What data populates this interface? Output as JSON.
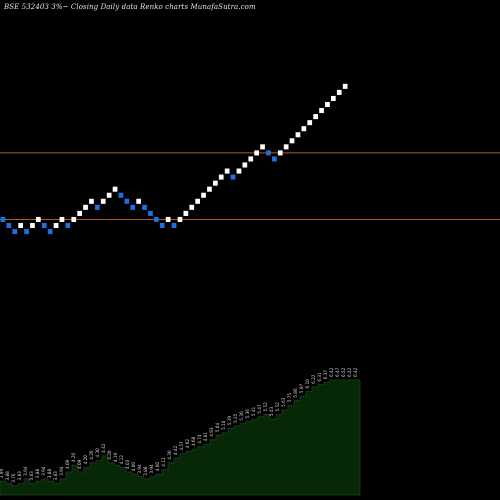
{
  "chart_data": {
    "type": "renko",
    "title": "BSE 532403 3%~   Closing Daily data  Renko  charts MunafaSutra.com",
    "colors": {
      "background": "#000000",
      "up_brick": "#ffffff",
      "down_brick": "#1f6fe0",
      "resistance_line": "#b25a1a",
      "volume_fill": "#062806",
      "volume_stroke": "#1f3f1f",
      "label": "#d8d8d8"
    },
    "horizontal_lines": [
      {
        "level": 22,
        "color": "#b25a1a"
      },
      {
        "level": 11,
        "color": "#b25a1a"
      }
    ],
    "bricks": [
      {
        "level": 11,
        "dir": "down"
      },
      {
        "level": 10,
        "dir": "down"
      },
      {
        "level": 9,
        "dir": "down"
      },
      {
        "level": 10,
        "dir": "up"
      },
      {
        "level": 9,
        "dir": "down"
      },
      {
        "level": 10,
        "dir": "up"
      },
      {
        "level": 11,
        "dir": "up"
      },
      {
        "level": 10,
        "dir": "down"
      },
      {
        "level": 9,
        "dir": "down"
      },
      {
        "level": 10,
        "dir": "up"
      },
      {
        "level": 11,
        "dir": "up"
      },
      {
        "level": 10,
        "dir": "down"
      },
      {
        "level": 11,
        "dir": "up"
      },
      {
        "level": 12,
        "dir": "up"
      },
      {
        "level": 13,
        "dir": "up"
      },
      {
        "level": 14,
        "dir": "up"
      },
      {
        "level": 13,
        "dir": "down"
      },
      {
        "level": 14,
        "dir": "up"
      },
      {
        "level": 15,
        "dir": "up"
      },
      {
        "level": 16,
        "dir": "up"
      },
      {
        "level": 15,
        "dir": "down"
      },
      {
        "level": 14,
        "dir": "down"
      },
      {
        "level": 13,
        "dir": "down"
      },
      {
        "level": 14,
        "dir": "up"
      },
      {
        "level": 13,
        "dir": "down"
      },
      {
        "level": 12,
        "dir": "down"
      },
      {
        "level": 11,
        "dir": "down"
      },
      {
        "level": 10,
        "dir": "down"
      },
      {
        "level": 11,
        "dir": "up"
      },
      {
        "level": 10,
        "dir": "down"
      },
      {
        "level": 11,
        "dir": "up"
      },
      {
        "level": 12,
        "dir": "up"
      },
      {
        "level": 13,
        "dir": "up"
      },
      {
        "level": 14,
        "dir": "up"
      },
      {
        "level": 15,
        "dir": "up"
      },
      {
        "level": 16,
        "dir": "up"
      },
      {
        "level": 17,
        "dir": "up"
      },
      {
        "level": 18,
        "dir": "up"
      },
      {
        "level": 19,
        "dir": "up"
      },
      {
        "level": 18,
        "dir": "down"
      },
      {
        "level": 19,
        "dir": "up"
      },
      {
        "level": 20,
        "dir": "up"
      },
      {
        "level": 21,
        "dir": "up"
      },
      {
        "level": 22,
        "dir": "up"
      },
      {
        "level": 23,
        "dir": "up"
      },
      {
        "level": 22,
        "dir": "down"
      },
      {
        "level": 21,
        "dir": "down"
      },
      {
        "level": 22,
        "dir": "up"
      },
      {
        "level": 23,
        "dir": "up"
      },
      {
        "level": 24,
        "dir": "up"
      },
      {
        "level": 25,
        "dir": "up"
      },
      {
        "level": 26,
        "dir": "up"
      },
      {
        "level": 27,
        "dir": "up"
      },
      {
        "level": 28,
        "dir": "up"
      },
      {
        "level": 29,
        "dir": "up"
      },
      {
        "level": 30,
        "dir": "up"
      },
      {
        "level": 31,
        "dir": "up"
      },
      {
        "level": 32,
        "dir": "up"
      },
      {
        "level": 33,
        "dir": "up"
      }
    ],
    "volume_labels": [
      "3.99",
      "3.88",
      "3.76",
      "3.83",
      "3.94",
      "3.83",
      "3.88",
      "3.94",
      "3.88",
      "3.83",
      "3.94",
      "4.09",
      "4.20",
      "4.09",
      "4.20",
      "4.26",
      "4.30",
      "4.42",
      "4.20",
      "4.19",
      "4.12",
      "4.03",
      "4.00",
      "3.94",
      "3.88",
      "3.94",
      "4.00",
      "4.12",
      "4.30",
      "4.42",
      "4.57",
      "4.62",
      "4.68",
      "4.74",
      "4.81",
      "4.93",
      "5.04",
      "5.10",
      "5.19",
      "5.25",
      "5.30",
      "5.36",
      "5.41",
      "5.47",
      "5.52",
      "5.43",
      "5.52",
      "5.63",
      "5.75",
      "5.86",
      "5.97",
      "6.10",
      "6.22",
      "6.31",
      "6.37",
      "6.42",
      "6.47",
      "6.52",
      "6.42",
      "6.42"
    ],
    "volume_profile": [
      0.06,
      0.05,
      0.04,
      0.05,
      0.07,
      0.05,
      0.06,
      0.07,
      0.06,
      0.05,
      0.07,
      0.1,
      0.13,
      0.1,
      0.12,
      0.14,
      0.15,
      0.17,
      0.14,
      0.13,
      0.12,
      0.1,
      0.09,
      0.08,
      0.07,
      0.08,
      0.09,
      0.11,
      0.14,
      0.16,
      0.18,
      0.19,
      0.2,
      0.21,
      0.22,
      0.24,
      0.26,
      0.27,
      0.29,
      0.3,
      0.31,
      0.32,
      0.33,
      0.34,
      0.35,
      0.33,
      0.35,
      0.37,
      0.39,
      0.41,
      0.43,
      0.45,
      0.47,
      0.48,
      0.49,
      0.5,
      0.5,
      0.5,
      0.5,
      0.5
    ]
  }
}
